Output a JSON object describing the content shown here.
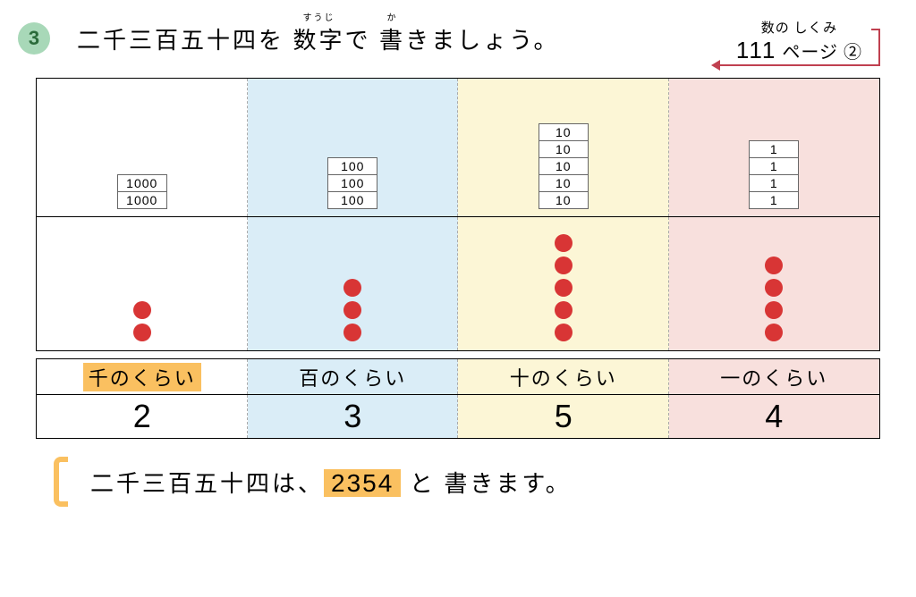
{
  "question": {
    "number": "3",
    "text_pre": "二千三百五十四を ",
    "ruby1_base": "数字",
    "ruby1_top": "すうじ",
    "text_mid": "で ",
    "ruby2_base": "書",
    "ruby2_top": "か",
    "text_post": "きましょう。"
  },
  "reference": {
    "top": "数の しくみ",
    "page_num": "111",
    "page_suffix": "ページ ②"
  },
  "places": [
    {
      "bg": "bg-sen",
      "tile_value": "1000",
      "tile_count": 2,
      "dot_count": 2,
      "label": "千のくらい",
      "label_highlight": true,
      "digit": "2"
    },
    {
      "bg": "bg-hyaku",
      "tile_value": "100",
      "tile_count": 3,
      "dot_count": 3,
      "label": "百のくらい",
      "label_highlight": false,
      "digit": "3"
    },
    {
      "bg": "bg-ju",
      "tile_value": "10",
      "tile_count": 5,
      "dot_count": 5,
      "label": "十のくらい",
      "label_highlight": false,
      "digit": "5"
    },
    {
      "bg": "bg-ichi",
      "tile_value": "1",
      "tile_count": 4,
      "dot_count": 4,
      "label": "一のくらい",
      "label_highlight": false,
      "digit": "4"
    }
  ],
  "answer": {
    "pre": "二千三百五十四は、",
    "num": "2354",
    "post": " と 書きます。"
  },
  "colors": {
    "dot": "#d83535",
    "highlight": "#fac060",
    "ref_line": "#c04050"
  }
}
